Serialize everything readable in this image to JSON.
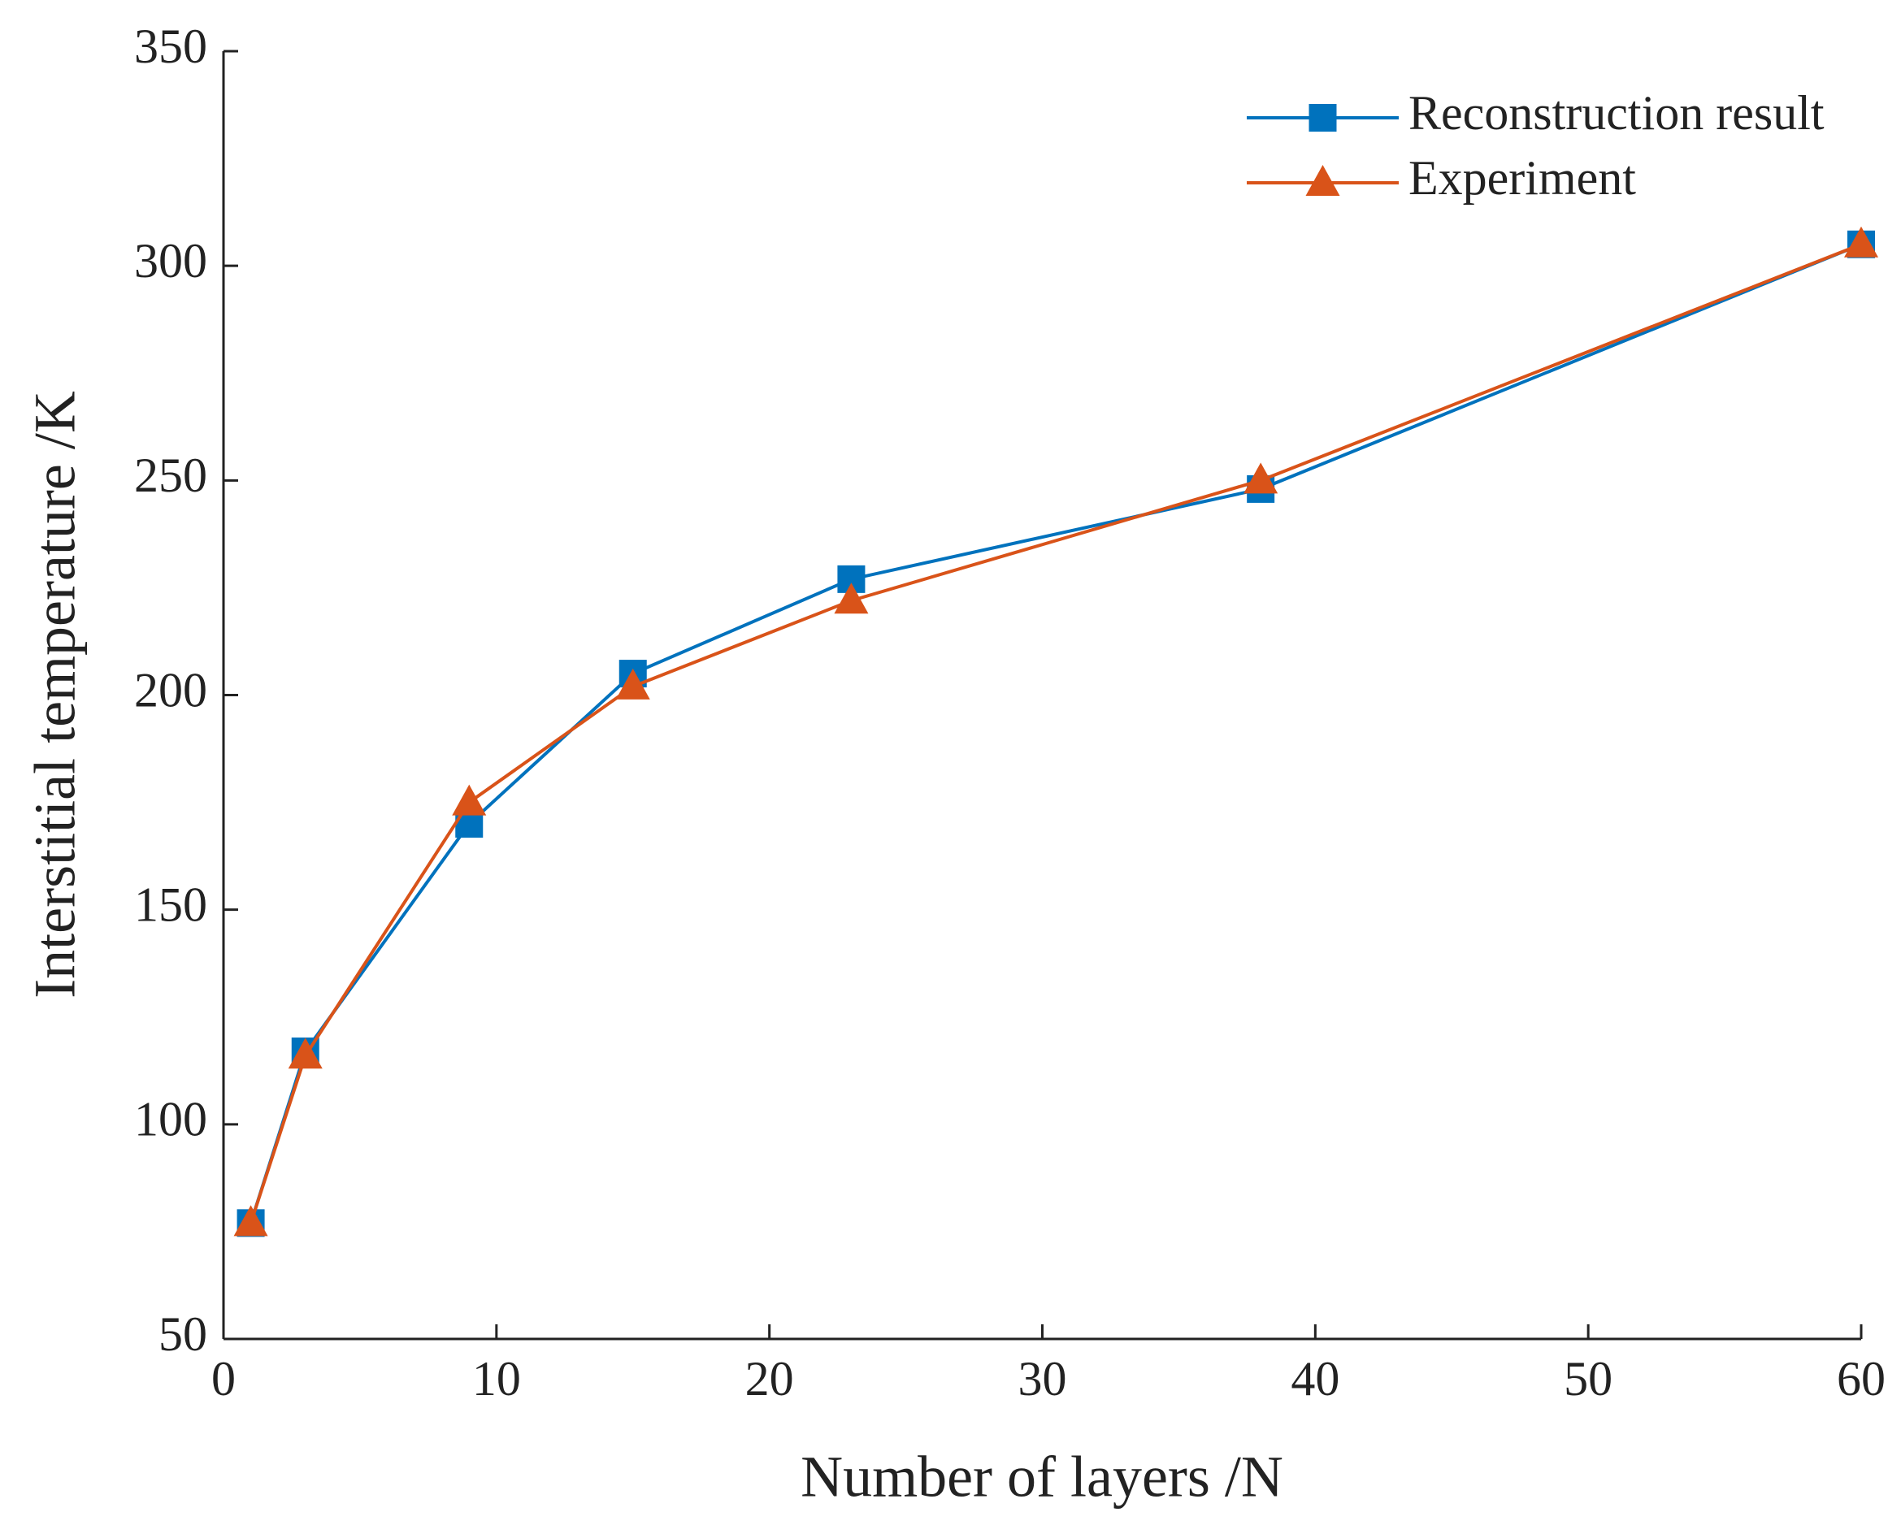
{
  "chart_data": {
    "type": "line",
    "x_label": "Number of layers /N",
    "y_label": "Interstitial temperature /K",
    "x": [
      1,
      3,
      9,
      15,
      23,
      38,
      60
    ],
    "series": [
      {
        "name": "Reconstruction result",
        "color": "#0072BD",
        "marker": "square",
        "values": [
          77,
          117,
          170,
          205,
          227,
          248,
          305
        ]
      },
      {
        "name": "Experiment",
        "color": "#D95319",
        "marker": "triangle",
        "values": [
          77,
          116,
          175,
          202,
          222,
          250,
          305
        ]
      }
    ],
    "xlim": [
      0,
      60
    ],
    "xticks": [
      0,
      10,
      20,
      30,
      40,
      50,
      60
    ],
    "ylim": [
      50,
      350
    ],
    "yticks": [
      50,
      100,
      150,
      200,
      250,
      300,
      350
    ],
    "legend": "upper right",
    "grid": false
  }
}
